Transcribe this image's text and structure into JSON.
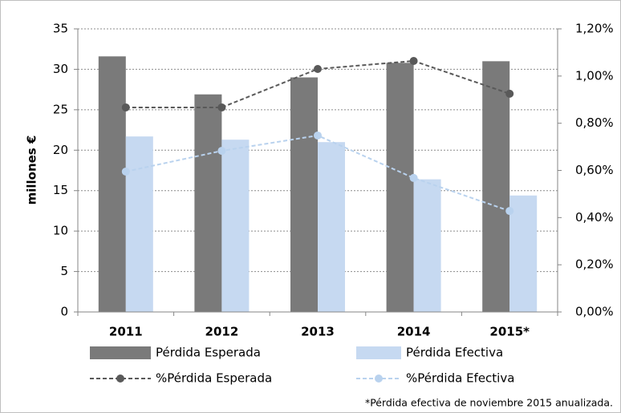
{
  "chart_data": {
    "type": "bar",
    "ylabel": "millones €",
    "categories": [
      "2011",
      "2012",
      "2013",
      "2014",
      "2015*"
    ],
    "series": [
      {
        "name": "Pérdida Esperada",
        "type": "bar",
        "axis": "y",
        "color": "#7a7a7a",
        "values": [
          31.6,
          26.9,
          29.0,
          30.8,
          31.0
        ]
      },
      {
        "name": "Pérdida Efectiva",
        "type": "bar",
        "axis": "y",
        "color": "#c6d9f1",
        "values": [
          21.7,
          21.3,
          21.0,
          16.4,
          14.4
        ]
      },
      {
        "name": "%Pérdida Esperada",
        "type": "line",
        "axis": "y2",
        "color": "#595959",
        "values": [
          0.867,
          0.867,
          1.03,
          1.064,
          0.925
        ]
      },
      {
        "name": "%Pérdida Efectiva",
        "type": "line",
        "axis": "y2",
        "color": "#b9d2ee",
        "values": [
          0.595,
          0.683,
          0.748,
          0.568,
          0.428
        ]
      }
    ],
    "ylim": [
      0,
      35
    ],
    "yticks": [
      0,
      5,
      10,
      15,
      20,
      25,
      30,
      35
    ],
    "y2lim": [
      0,
      1.2
    ],
    "y2ticks": [
      {
        "value": 0,
        "label": "0,00%"
      },
      {
        "value": 0.2,
        "label": "0,20%"
      },
      {
        "value": 0.4,
        "label": "0,40%"
      },
      {
        "value": 0.6,
        "label": "0,60%"
      },
      {
        "value": 0.8,
        "label": "0,80%"
      },
      {
        "value": 1.0,
        "label": "1,00%"
      },
      {
        "value": 1.2,
        "label": "1,20%"
      }
    ],
    "grid": true,
    "footnote": "*Pérdida efectiva de noviembre 2015  anualizada."
  }
}
